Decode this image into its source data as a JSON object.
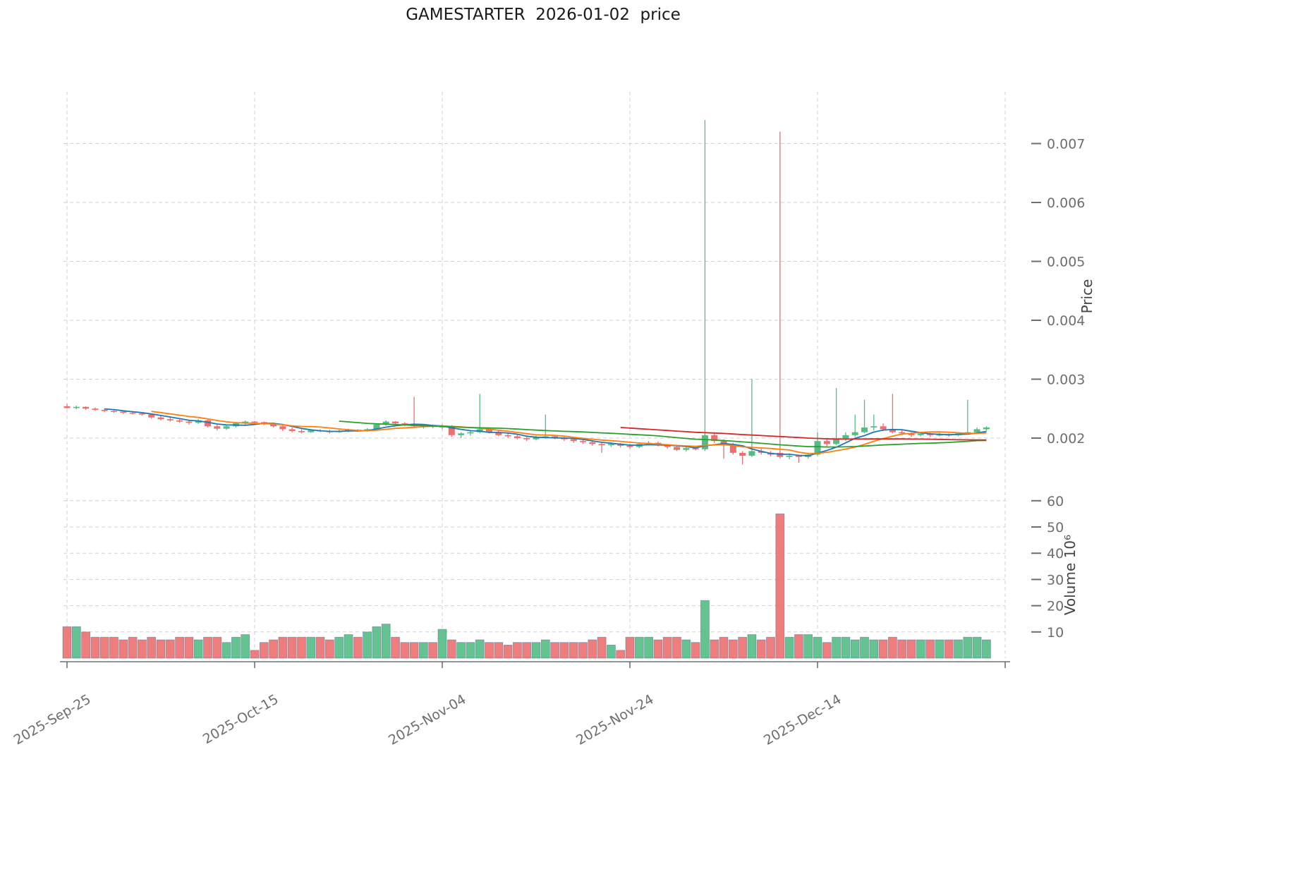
{
  "colors": {
    "up": "#53bd84",
    "down": "#ec7070",
    "grid": "#d0d0d0",
    "tick_text": "#6e6e6e",
    "axis_line": "#555555",
    "bar_edge": "#4d6a8f",
    "title_text": "#1a1a1a"
  },
  "chart_data": {
    "type": "candlestick",
    "title": "GAMESTARTER  2026-01-02  price",
    "ylabel_price": "Price",
    "ylabel_volume": "Volume  10⁶",
    "legend_position": "none",
    "grid": "dashed",
    "price_ticks": [
      0.002,
      0.003,
      0.004,
      0.005,
      0.006,
      0.007
    ],
    "volume_ticks": [
      10,
      20,
      30,
      40,
      50,
      60
    ],
    "x_tick_labels": [
      "2025-Sep-25",
      "2025-Oct-15",
      "2025-Nov-04",
      "2025-Nov-24",
      "2025-Dec-14"
    ],
    "x_tick_indices": [
      0,
      20,
      40,
      60,
      80
    ],
    "x_grid_extra_index": 100,
    "moving_averages": [
      {
        "name": "MA5",
        "window": 5,
        "color": "#1f77b4"
      },
      {
        "name": "MA10",
        "window": 10,
        "color": "#ff7f0e"
      },
      {
        "name": "MA30",
        "window": 30,
        "color": "#2ca02c"
      },
      {
        "name": "MA60",
        "window": 60,
        "color": "#d62728"
      }
    ],
    "open": [
      0.00254,
      0.00251,
      0.00253,
      0.0025,
      0.00248,
      0.00246,
      0.00245,
      0.00243,
      0.00242,
      0.0024,
      0.00235,
      0.00232,
      0.0023,
      0.00228,
      0.00226,
      0.0023,
      0.0022,
      0.00216,
      0.0022,
      0.00225,
      0.00228,
      0.00227,
      0.00225,
      0.0022,
      0.00215,
      0.00212,
      0.0021,
      0.00213,
      0.00212,
      0.0021,
      0.00212,
      0.00214,
      0.00213,
      0.00215,
      0.00223,
      0.00228,
      0.00225,
      0.00222,
      0.0022,
      0.00221,
      0.00218,
      0.00221,
      0.00205,
      0.00208,
      0.0021,
      0.00215,
      0.0021,
      0.00205,
      0.00203,
      0.002,
      0.00198,
      0.00201,
      0.00203,
      0.002,
      0.00198,
      0.00195,
      0.00193,
      0.0019,
      0.00188,
      0.0019,
      0.00187,
      0.00185,
      0.0019,
      0.00192,
      0.00188,
      0.00185,
      0.0018,
      0.00183,
      0.00181,
      0.00205,
      0.00195,
      0.0019,
      0.00175,
      0.0017,
      0.00178,
      0.00175,
      0.00175,
      0.00168,
      0.0017,
      0.00168,
      0.00172,
      0.00195,
      0.0019,
      0.00198,
      0.00205,
      0.0021,
      0.00218,
      0.0022,
      0.00215,
      0.0021,
      0.00208,
      0.00205,
      0.00208,
      0.00205,
      0.00206,
      0.00205,
      0.00208,
      0.0021,
      0.00215
    ],
    "high": [
      0.00258,
      0.00255,
      0.00254,
      0.00252,
      0.0025,
      0.00249,
      0.00247,
      0.00246,
      0.00244,
      0.00242,
      0.00238,
      0.00235,
      0.00233,
      0.0023,
      0.00232,
      0.00231,
      0.00223,
      0.00222,
      0.00227,
      0.0023,
      0.00229,
      0.00228,
      0.00226,
      0.00222,
      0.00218,
      0.00215,
      0.00215,
      0.00215,
      0.00214,
      0.00214,
      0.00216,
      0.00215,
      0.00217,
      0.00225,
      0.0023,
      0.00229,
      0.00227,
      0.0027,
      0.00224,
      0.00223,
      0.00223,
      0.00222,
      0.0021,
      0.00212,
      0.00275,
      0.00218,
      0.00213,
      0.00208,
      0.00206,
      0.00203,
      0.00204,
      0.0024,
      0.00205,
      0.00202,
      0.002,
      0.00198,
      0.00195,
      0.00192,
      0.00193,
      0.00192,
      0.0019,
      0.00193,
      0.00195,
      0.00194,
      0.0019,
      0.00188,
      0.00185,
      0.00186,
      0.0074,
      0.0021,
      0.00198,
      0.00192,
      0.00178,
      0.003,
      0.00182,
      0.00178,
      0.0072,
      0.00174,
      0.00172,
      0.00175,
      0.0021,
      0.00198,
      0.00285,
      0.0021,
      0.0024,
      0.00265,
      0.0024,
      0.00225,
      0.00275,
      0.00213,
      0.0021,
      0.0021,
      0.0021,
      0.00209,
      0.00208,
      0.0021,
      0.00265,
      0.00218,
      0.0022
    ],
    "low": [
      0.0025,
      0.00249,
      0.00248,
      0.00246,
      0.00244,
      0.00243,
      0.00241,
      0.0024,
      0.00238,
      0.00233,
      0.0023,
      0.00228,
      0.00226,
      0.00223,
      0.00224,
      0.00218,
      0.00213,
      0.00214,
      0.00218,
      0.00223,
      0.00224,
      0.00222,
      0.00218,
      0.00212,
      0.0021,
      0.00208,
      0.00209,
      0.0021,
      0.00208,
      0.00209,
      0.0021,
      0.00211,
      0.00211,
      0.00214,
      0.00221,
      0.00223,
      0.0022,
      0.00218,
      0.00216,
      0.00217,
      0.00215,
      0.00202,
      0.002,
      0.00204,
      0.00208,
      0.00208,
      0.00203,
      0.002,
      0.00198,
      0.00195,
      0.00196,
      0.00199,
      0.00198,
      0.00195,
      0.00192,
      0.0019,
      0.00187,
      0.00175,
      0.00185,
      0.00184,
      0.00182,
      0.00183,
      0.00188,
      0.00186,
      0.00182,
      0.00178,
      0.00177,
      0.00179,
      0.00178,
      0.00192,
      0.00165,
      0.00172,
      0.00155,
      0.00168,
      0.00172,
      0.00169,
      0.00165,
      0.00164,
      0.00158,
      0.00165,
      0.0017,
      0.00186,
      0.00188,
      0.00195,
      0.00202,
      0.00208,
      0.00213,
      0.00212,
      0.00208,
      0.00205,
      0.00202,
      0.00203,
      0.00202,
      0.00203,
      0.00202,
      0.00203,
      0.00206,
      0.00208,
      0.00212
    ],
    "close": [
      0.00251,
      0.00253,
      0.0025,
      0.00248,
      0.00246,
      0.00245,
      0.00243,
      0.00242,
      0.0024,
      0.00235,
      0.00232,
      0.0023,
      0.00228,
      0.00226,
      0.0023,
      0.0022,
      0.00216,
      0.0022,
      0.00225,
      0.00228,
      0.00227,
      0.00225,
      0.0022,
      0.00215,
      0.00212,
      0.0021,
      0.00213,
      0.00212,
      0.0021,
      0.00212,
      0.00214,
      0.00213,
      0.00215,
      0.00223,
      0.00228,
      0.00225,
      0.00222,
      0.0022,
      0.00221,
      0.00219,
      0.00221,
      0.00205,
      0.00208,
      0.0021,
      0.00215,
      0.0021,
      0.00205,
      0.00203,
      0.002,
      0.00198,
      0.00201,
      0.00203,
      0.002,
      0.00198,
      0.00195,
      0.00193,
      0.0019,
      0.00188,
      0.0019,
      0.00187,
      0.00185,
      0.0019,
      0.00192,
      0.00188,
      0.00185,
      0.0018,
      0.00183,
      0.00181,
      0.00205,
      0.00195,
      0.0019,
      0.00175,
      0.0017,
      0.00178,
      0.00175,
      0.00172,
      0.00168,
      0.0017,
      0.00168,
      0.00172,
      0.00195,
      0.0019,
      0.00198,
      0.00205,
      0.0021,
      0.00218,
      0.0022,
      0.00215,
      0.0021,
      0.00208,
      0.00205,
      0.00208,
      0.00205,
      0.00206,
      0.00205,
      0.00208,
      0.0021,
      0.00215,
      0.00218
    ],
    "volume": [
      12,
      12,
      10,
      8,
      8,
      8,
      7,
      8,
      7,
      8,
      7,
      7,
      8,
      8,
      7,
      8,
      8,
      6,
      8,
      9,
      3,
      6,
      7,
      8,
      8,
      8,
      8,
      8,
      7,
      8,
      9,
      8,
      10,
      12,
      13,
      8,
      6,
      6,
      6,
      6,
      11,
      7,
      6,
      6,
      7,
      6,
      6,
      5,
      6,
      6,
      6,
      7,
      6,
      6,
      6,
      6,
      7,
      8,
      5,
      3,
      8,
      8,
      8,
      7,
      8,
      8,
      7,
      6,
      22,
      7,
      8,
      7,
      8,
      9,
      7,
      8,
      55,
      8,
      9,
      9,
      8,
      6,
      8,
      8,
      7,
      8,
      7,
      7,
      8,
      7,
      7,
      7,
      7,
      7,
      7,
      7,
      8,
      8,
      7
    ]
  }
}
